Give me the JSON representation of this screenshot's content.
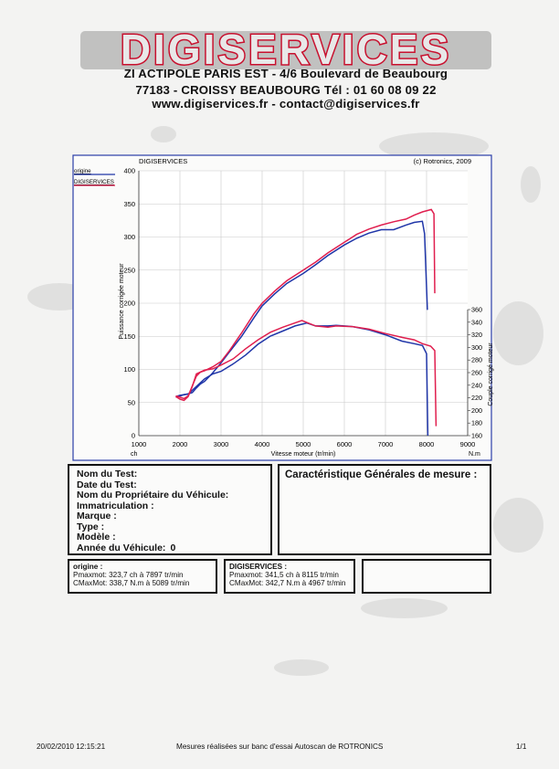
{
  "header": {
    "logo_text": "DIGISERVICES",
    "address_line1": "ZI ACTIPOLE PARIS EST - 4/6 Boulevard de Beaubourg",
    "address_line2": "77183 - CROISSY BEAUBOURG Tél : 01 60 08 09 22",
    "address_line3": "www.digiservices.fr - contact@digiservices.fr"
  },
  "chart_data": {
    "type": "line",
    "header_left": "DIGISERVICES",
    "header_right": "(c) Rotronics, 2009",
    "xlabel": "Vitesse moteur (tr/min)",
    "xunit": "ch",
    "xunit_right": "N.m",
    "ylabel": "Puissance corrigée moteur",
    "y2label": "Couple corrigé moteur",
    "xlim": [
      1000,
      9000
    ],
    "ylim": [
      0,
      400
    ],
    "y2lim": [
      160,
      360
    ],
    "xticks": [
      1000,
      2000,
      3000,
      4000,
      5000,
      6000,
      7000,
      8000,
      9000
    ],
    "yticks": [
      0,
      50,
      100,
      150,
      200,
      250,
      300,
      350,
      400
    ],
    "y2ticks": [
      160,
      180,
      200,
      220,
      240,
      260,
      280,
      300,
      320,
      340,
      360
    ],
    "grid": true,
    "legend_position": "top-left",
    "series": [
      {
        "name": "origine",
        "color": "#1f35a8",
        "power": {
          "x": [
            1900,
            2000,
            2100,
            2200,
            2300,
            2400,
            2500,
            2600,
            2800,
            3000,
            3200,
            3500,
            3800,
            4000,
            4300,
            4600,
            5000,
            5300,
            5600,
            6000,
            6300,
            6600,
            6900,
            7200,
            7500,
            7700,
            7897,
            7950,
            8020
          ],
          "y": [
            58,
            60,
            62,
            63,
            65,
            72,
            78,
            82,
            95,
            110,
            126,
            150,
            178,
            196,
            214,
            230,
            245,
            258,
            272,
            288,
            298,
            306,
            311,
            311,
            318,
            322,
            323.7,
            305,
            190
          ]
        },
        "torque": {
          "x": [
            1900,
            2000,
            2100,
            2200,
            2400,
            2600,
            2800,
            3000,
            3300,
            3600,
            3900,
            4200,
            4500,
            4800,
            5089,
            5300,
            5600,
            5800,
            6200,
            6600,
            7000,
            7400,
            7700,
            7900,
            8000,
            8030
          ],
          "y": [
            222,
            224,
            225,
            226,
            238,
            250,
            258,
            262,
            274,
            288,
            305,
            318,
            326,
            334,
            338.7,
            334,
            334,
            335,
            333,
            328,
            320,
            310,
            306,
            303,
            290,
            160
          ]
        }
      },
      {
        "name": "DIGISERVICES",
        "color": "#e01e4e",
        "power": {
          "x": [
            1900,
            2000,
            2100,
            2200,
            2300,
            2400,
            2500,
            2600,
            2800,
            3000,
            3200,
            3500,
            3800,
            4000,
            4300,
            4600,
            5000,
            5300,
            5600,
            6000,
            6300,
            6600,
            6900,
            7200,
            7500,
            7700,
            7900,
            8115,
            8180,
            8200
          ],
          "y": [
            60,
            58,
            56,
            60,
            75,
            90,
            96,
            98,
            104,
            112,
            128,
            155,
            184,
            200,
            218,
            234,
            250,
            262,
            276,
            292,
            304,
            312,
            318,
            323,
            327,
            333,
            338,
            341.5,
            335,
            215
          ]
        },
        "torque": {
          "x": [
            1900,
            2000,
            2100,
            2200,
            2300,
            2400,
            2600,
            2800,
            3000,
            3300,
            3600,
            3900,
            4200,
            4500,
            4967,
            5300,
            5600,
            5800,
            6200,
            6600,
            7000,
            7400,
            7700,
            7900,
            8100,
            8200,
            8230
          ],
          "y": [
            222,
            218,
            216,
            222,
            238,
            258,
            264,
            266,
            272,
            282,
            298,
            312,
            324,
            332,
            342.7,
            334,
            332,
            334,
            333,
            329,
            322,
            316,
            312,
            306,
            302,
            295,
            175
          ]
        }
      }
    ]
  },
  "test_info": {
    "lines": [
      {
        "label": "Nom du Test:",
        "value": ""
      },
      {
        "label": "Date du Test:",
        "value": ""
      },
      {
        "label": "Nom du Propriétaire du Véhicule:",
        "value": ""
      },
      {
        "label": "Immatriculation :",
        "value": ""
      },
      {
        "label": "Marque :",
        "value": ""
      },
      {
        "label": "Type :",
        "value": ""
      },
      {
        "label": "Modèle :",
        "value": ""
      },
      {
        "label": "Année du Véhicule:",
        "value": "0"
      }
    ]
  },
  "characteristics": {
    "title": "Caractéristique Générales de mesure :"
  },
  "results": [
    {
      "title": "origine :",
      "pmax": "Pmaxmot: 323,7 ch à 7897 tr/min",
      "cmax": "CMaxMot: 338,7 N.m à 5089 tr/min"
    },
    {
      "title": "DIGISERVICES :",
      "pmax": "Pmaxmot: 341,5 ch à 8115 tr/min",
      "cmax": "CMaxMot: 342,7 N.m à 4967 tr/min"
    }
  ],
  "footer": {
    "datetime": "20/02/2010 12:15:21",
    "note": "Mesures réalisées sur banc d'essai Autoscan de ROTRONICS",
    "page": "1/1"
  }
}
